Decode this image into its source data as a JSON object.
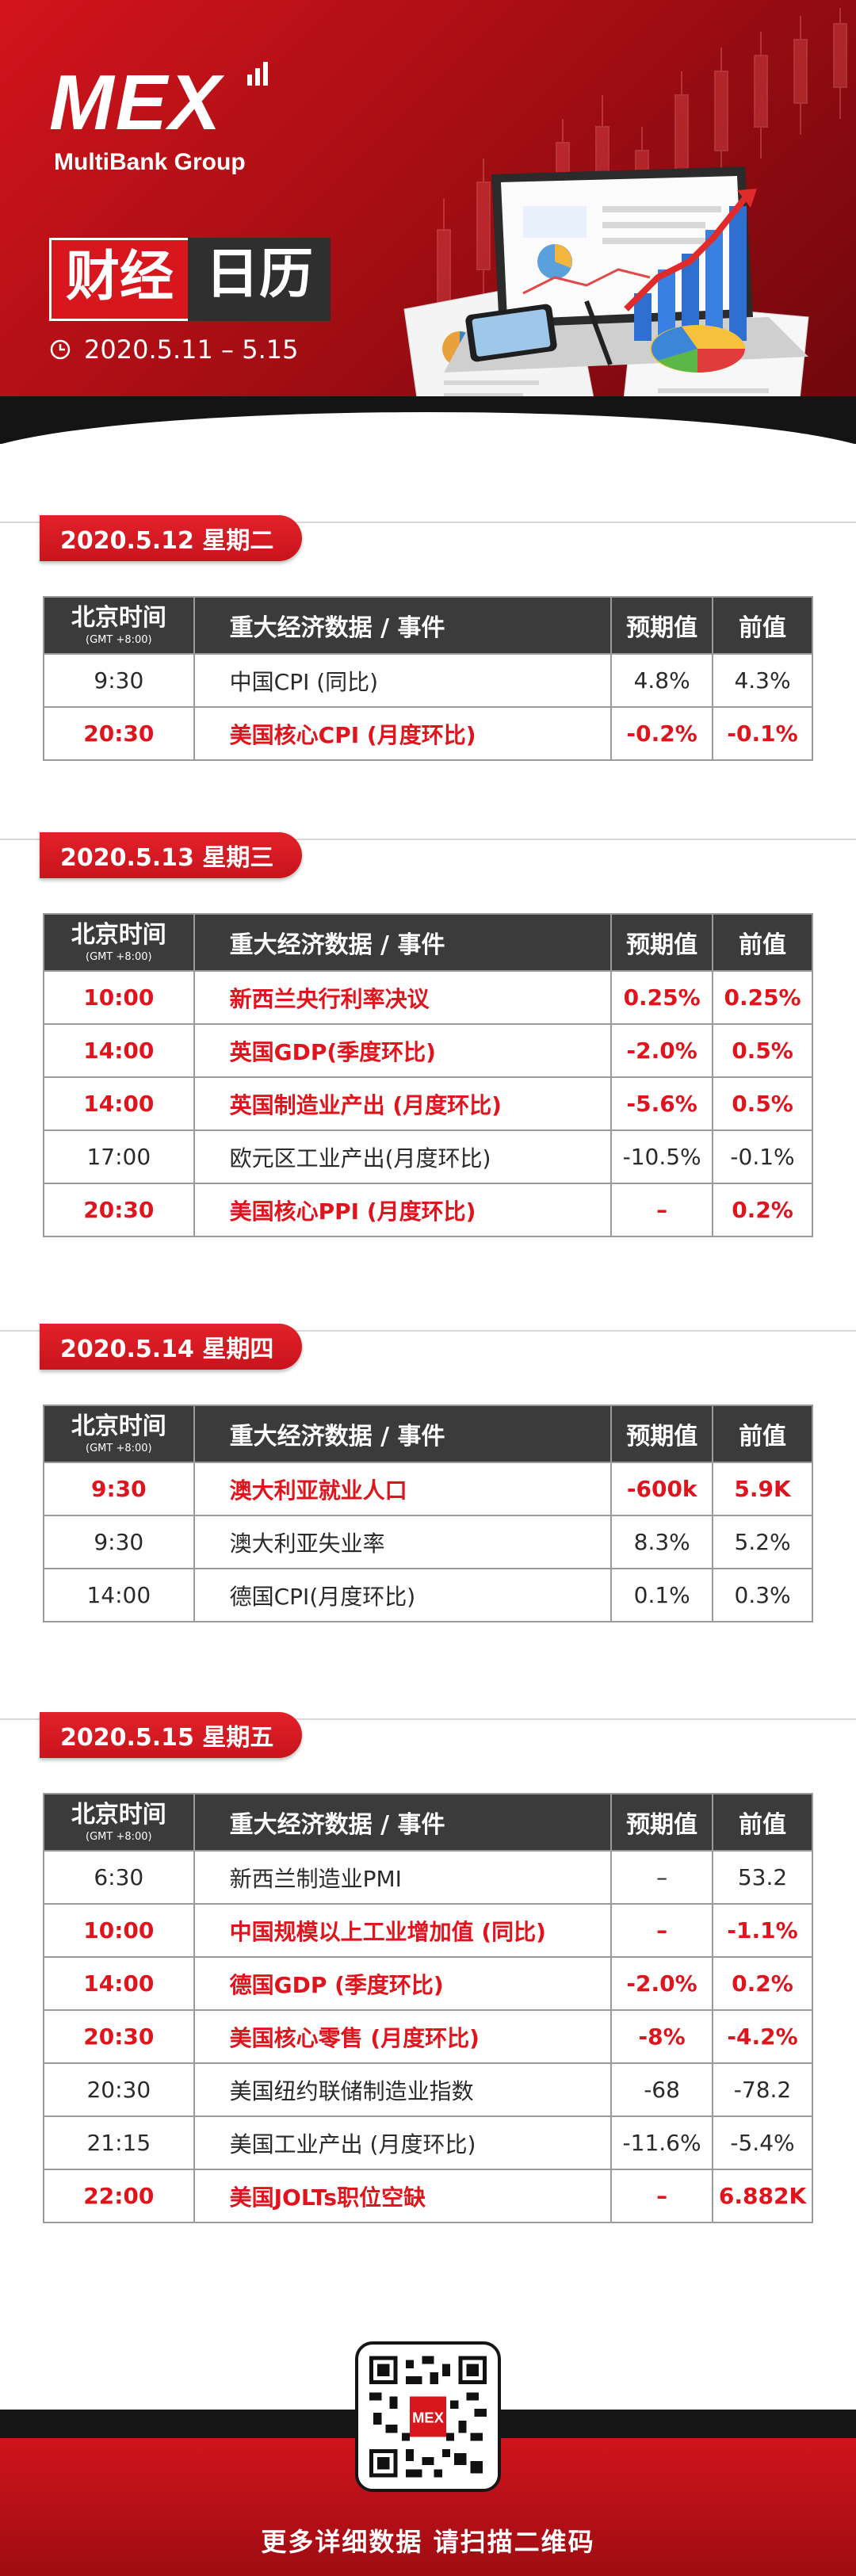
{
  "brand": {
    "logo_text": "MEX",
    "subtitle": "MultiBank Group"
  },
  "header": {
    "title_part1": "财经",
    "title_part2": "日历",
    "date_range": "2020.5.11 – 5.15"
  },
  "table_headers": {
    "time": "北京时间",
    "time_sub": "(GMT +8:00)",
    "event": "重大经济数据 / 事件",
    "forecast": "预期值",
    "previous": "前值"
  },
  "days": [
    {
      "label": "2020.5.12  星期二",
      "rows": [
        {
          "time": "9:30",
          "event": "中国CPI (同比)",
          "forecast": "4.8%",
          "previous": "4.3%",
          "highlight": false
        },
        {
          "time": "20:30",
          "event": "美国核心CPI (月度环比)",
          "forecast": "-0.2%",
          "previous": "-0.1%",
          "highlight": true
        }
      ]
    },
    {
      "label": "2020.5.13  星期三",
      "rows": [
        {
          "time": "10:00",
          "event": "新西兰央行利率决议",
          "forecast": "0.25%",
          "previous": "0.25%",
          "highlight": true
        },
        {
          "time": "14:00",
          "event": "英国GDP(季度环比)",
          "forecast": "-2.0%",
          "previous": "0.5%",
          "highlight": true
        },
        {
          "time": "14:00",
          "event": "英国制造业产出 (月度环比)",
          "forecast": "-5.6%",
          "previous": "0.5%",
          "highlight": true
        },
        {
          "time": "17:00",
          "event": "欧元区工业产出(月度环比)",
          "forecast": "-10.5%",
          "previous": "-0.1%",
          "highlight": false
        },
        {
          "time": "20:30",
          "event": "美国核心PPI (月度环比)",
          "forecast": "–",
          "previous": "0.2%",
          "highlight": true
        }
      ]
    },
    {
      "label": "2020.5.14  星期四",
      "rows": [
        {
          "time": "9:30",
          "event": "澳大利亚就业人口",
          "forecast": "-600k",
          "previous": "5.9K",
          "highlight": true
        },
        {
          "time": "9:30",
          "event": "澳大利亚失业率",
          "forecast": "8.3%",
          "previous": "5.2%",
          "highlight": false
        },
        {
          "time": "14:00",
          "event": "德国CPI(月度环比)",
          "forecast": "0.1%",
          "previous": "0.3%",
          "highlight": false
        }
      ]
    },
    {
      "label": "2020.5.15  星期五",
      "rows": [
        {
          "time": "6:30",
          "event": "新西兰制造业PMI",
          "forecast": "–",
          "previous": "53.2",
          "highlight": false
        },
        {
          "time": "10:00",
          "event": "中国规模以上工业增加值 (同比)",
          "forecast": "–",
          "previous": "-1.1%",
          "highlight": true
        },
        {
          "time": "14:00",
          "event": "德国GDP (季度环比)",
          "forecast": "-2.0%",
          "previous": "0.2%",
          "highlight": true
        },
        {
          "time": "20:30",
          "event": "美国核心零售 (月度环比)",
          "forecast": "-8%",
          "previous": "-4.2%",
          "highlight": true
        },
        {
          "time": "20:30",
          "event": "美国纽约联储制造业指数",
          "forecast": "-68",
          "previous": "-78.2",
          "highlight": false
        },
        {
          "time": "21:15",
          "event": "美国工业产出 (月度环比)",
          "forecast": "-11.6%",
          "previous": "-5.4%",
          "highlight": false
        },
        {
          "time": "22:00",
          "event": "美国JOLTs职位空缺",
          "forecast": "–",
          "previous": "6.882K",
          "highlight": true
        }
      ]
    }
  ],
  "footer": {
    "cta": "更多详细数据 请扫描二维码",
    "qr_logo": "MEX"
  },
  "colors": {
    "accent_red": "#e0141c",
    "header_dark": "#3b3b3b"
  }
}
